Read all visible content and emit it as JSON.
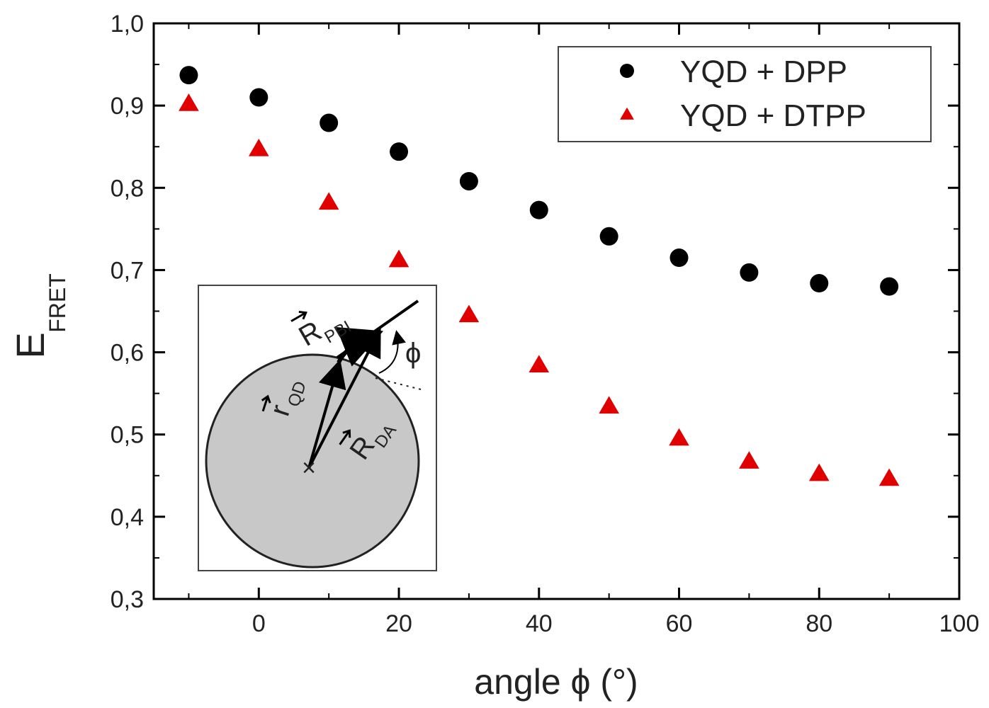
{
  "chart_data": {
    "type": "scatter",
    "title": "",
    "xlabel": "angle ϕ (°)",
    "ylabel": "E",
    "ylabel_sub": "FRET",
    "xlim": [
      -15,
      100
    ],
    "ylim": [
      0.3,
      1.0
    ],
    "xticks": [
      0,
      20,
      40,
      60,
      80,
      100
    ],
    "yticks": [
      0.3,
      0.4,
      0.5,
      0.6,
      0.7,
      0.8,
      0.9,
      1.0
    ],
    "xtick_labels": [
      "0",
      "20",
      "40",
      "60",
      "80",
      "100"
    ],
    "ytick_labels": [
      "0,3",
      "0,4",
      "0,5",
      "0,6",
      "0,7",
      "0,8",
      "0,9",
      "1,0"
    ],
    "legend_position": "top-right",
    "series": [
      {
        "name": "YQD + DPP",
        "marker": "circle",
        "color": "#000000",
        "x": [
          -10,
          0,
          10,
          20,
          30,
          40,
          50,
          60,
          70,
          80,
          90
        ],
        "y": [
          0.937,
          0.91,
          0.879,
          0.844,
          0.808,
          0.773,
          0.741,
          0.715,
          0.697,
          0.684,
          0.68
        ]
      },
      {
        "name": "YQD + DTPP",
        "marker": "triangle",
        "color": "#e00000",
        "x": [
          -10,
          0,
          10,
          20,
          30,
          40,
          50,
          60,
          70,
          80,
          90
        ],
        "y": [
          0.902,
          0.847,
          0.782,
          0.712,
          0.645,
          0.584,
          0.534,
          0.495,
          0.467,
          0.452,
          0.446
        ]
      }
    ],
    "inset": {
      "description_labels": {
        "r_pbi": "R",
        "r_pbi_sub": "PBI",
        "r_qd": "r",
        "r_qd_sub": "QD",
        "r_da": "R",
        "r_da_sub": "DA",
        "phi": "ϕ"
      }
    }
  }
}
